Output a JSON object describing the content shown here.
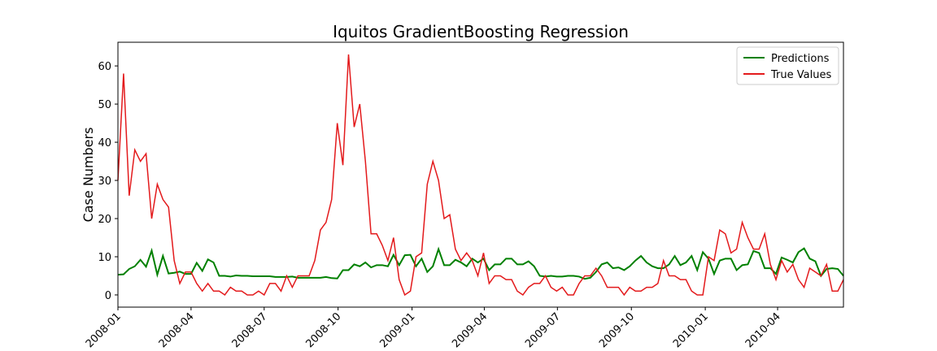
{
  "chart_data": {
    "type": "line",
    "title": "Iquitos GradientBoosting Regression",
    "y_label": "Case Numbers",
    "xlim": [
      0,
      129
    ],
    "ylim": [
      -3.2,
      66.2
    ],
    "xticks": [
      {
        "value": 0,
        "label": "2008-01"
      },
      {
        "value": 13,
        "label": "2008-04"
      },
      {
        "value": 26,
        "label": "2008-07"
      },
      {
        "value": 39.14,
        "label": "2008-10"
      },
      {
        "value": 52.29,
        "label": "2009-01"
      },
      {
        "value": 65.14,
        "label": "2009-04"
      },
      {
        "value": 78.14,
        "label": "2009-07"
      },
      {
        "value": 91.29,
        "label": "2009-10"
      },
      {
        "value": 104.43,
        "label": "2010-01"
      },
      {
        "value": 117.29,
        "label": "2010-04"
      }
    ],
    "yticks": [
      0,
      10,
      20,
      30,
      40,
      50,
      60
    ],
    "legend": "upper right",
    "series": [
      {
        "name": "Predictions",
        "color": "#008000",
        "values": [
          5.3,
          5.4,
          6.8,
          7.5,
          9.2,
          7.4,
          11.6,
          5.3,
          10.2,
          5.6,
          5.8,
          6.1,
          5.5,
          5.5,
          8.4,
          6.3,
          9.3,
          8.5,
          5.0,
          5.0,
          4.8,
          5.1,
          5.0,
          5.0,
          4.9,
          4.9,
          4.9,
          4.9,
          4.7,
          4.7,
          4.7,
          4.8,
          4.5,
          4.5,
          4.5,
          4.5,
          4.5,
          4.7,
          4.4,
          4.3,
          6.5,
          6.5,
          8.0,
          7.5,
          8.5,
          7.2,
          7.8,
          7.8,
          7.5,
          10.5,
          7.8,
          10.4,
          10.5,
          7.5,
          9.5,
          6.0,
          7.5,
          12.0,
          7.8,
          7.8,
          9.2,
          8.5,
          7.5,
          9.5,
          8.5,
          9.5,
          6.5,
          8.0,
          8.0,
          9.5,
          9.5,
          8.0,
          8.0,
          8.8,
          7.5,
          5.0,
          4.8,
          5.0,
          4.8,
          4.8,
          5.0,
          5.0,
          4.8,
          4.2,
          4.5,
          6.0,
          8.0,
          8.5,
          7.0,
          7.2,
          6.5,
          7.5,
          9.0,
          10.2,
          8.5,
          7.5,
          7.0,
          7.0,
          8.0,
          10.2,
          7.8,
          8.5,
          10.2,
          6.5,
          11.2,
          9.5,
          5.5,
          9.0,
          9.5,
          9.5,
          6.5,
          7.8,
          8.0,
          11.5,
          11.0,
          7.0,
          7.0,
          5.5,
          9.8,
          9.2,
          8.5,
          11.2,
          12.2,
          9.5,
          8.8,
          5.0,
          6.8,
          7.0,
          6.8,
          5.0
        ]
      },
      {
        "name": "True Values",
        "color": "#e31a1c",
        "values": [
          30,
          58,
          26,
          38,
          35,
          37,
          20,
          29,
          25,
          23,
          9,
          3,
          6,
          6,
          3,
          1,
          3,
          1,
          1,
          0,
          2,
          1,
          1,
          0,
          0,
          1,
          0,
          3,
          3,
          1,
          5,
          2,
          5,
          5,
          5,
          9,
          17,
          19,
          25,
          45,
          34,
          63,
          44,
          50,
          35,
          16,
          16,
          13,
          9,
          15,
          4,
          0,
          1,
          10,
          11,
          29,
          35,
          30,
          20,
          21,
          12,
          9,
          11,
          9,
          5,
          11,
          3,
          5,
          5,
          4,
          4,
          1,
          0,
          2,
          3,
          3,
          5,
          2,
          1,
          2,
          0,
          0,
          3,
          5,
          5,
          7,
          5,
          2,
          2,
          2,
          0,
          2,
          1,
          1,
          2,
          2,
          3,
          9,
          5,
          5,
          4,
          4,
          1,
          0,
          0,
          10,
          9,
          17,
          16,
          11,
          12,
          19,
          15,
          12,
          12,
          16,
          8,
          4,
          9,
          6,
          8,
          4,
          2,
          7,
          6,
          5,
          8,
          1,
          1,
          4
        ]
      }
    ]
  }
}
